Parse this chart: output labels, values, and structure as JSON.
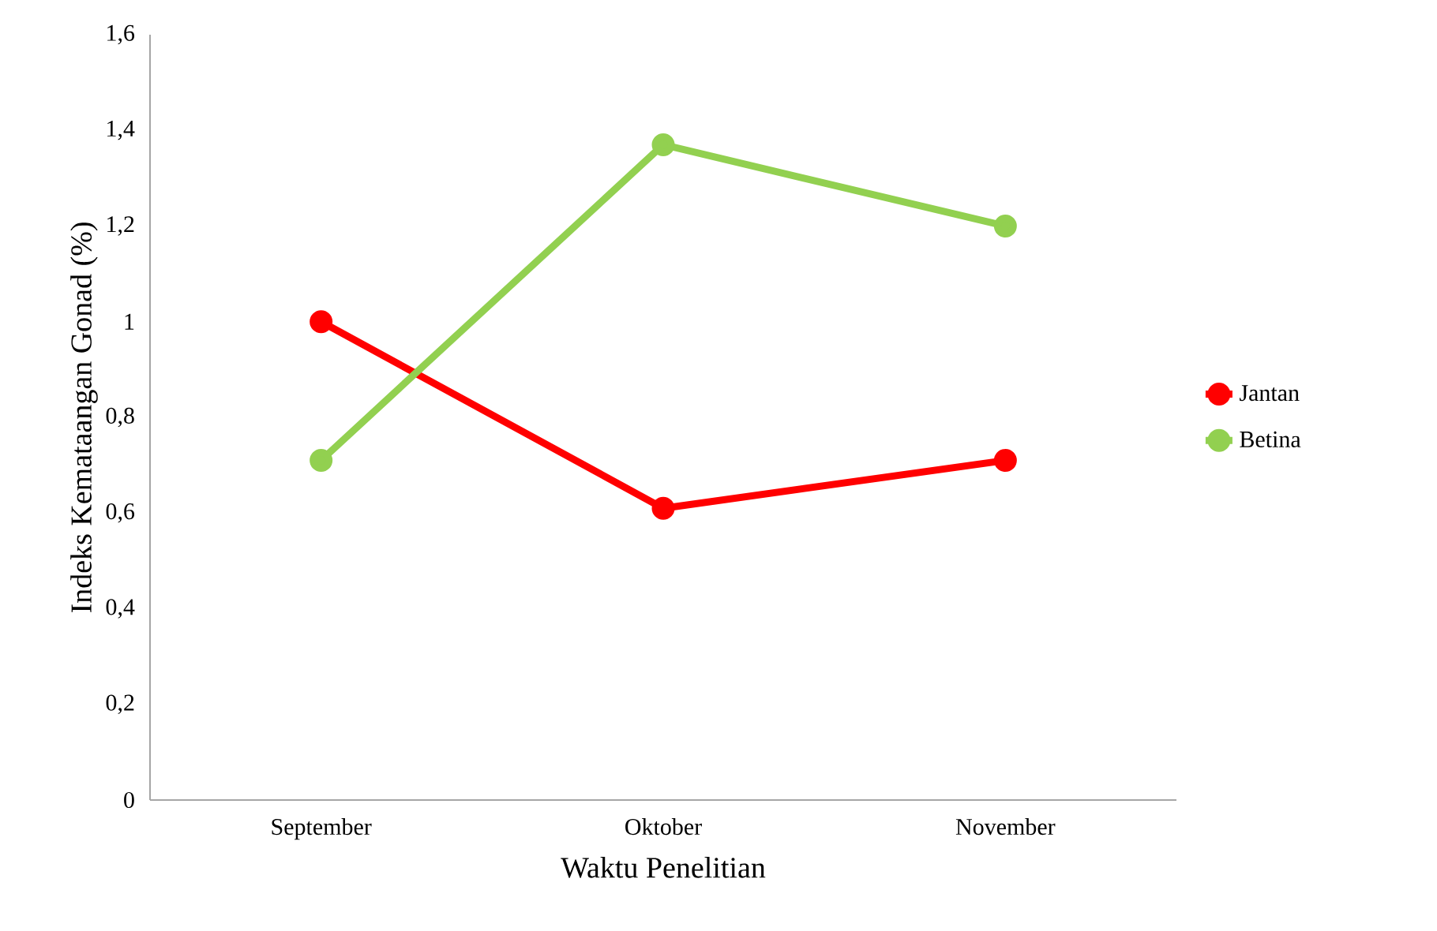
{
  "chart_data": {
    "type": "line",
    "xlabel": "Waktu Penelitian",
    "ylabel": "Indeks Kemataangan Gonad (%)",
    "categories": [
      "September",
      "Oktober",
      "November"
    ],
    "series": [
      {
        "name": "Jantan",
        "color": "#ff0000",
        "values": [
          1.0,
          0.61,
          0.71
        ]
      },
      {
        "name": "Betina",
        "color": "#92d050",
        "values": [
          0.71,
          1.37,
          1.2
        ]
      }
    ],
    "ylim": [
      0,
      1.6
    ],
    "yticks": [
      0,
      {
        "value": 0.2,
        "label": "0,2"
      },
      {
        "value": 0.4,
        "label": "0,4"
      },
      {
        "value": 0.6,
        "label": "0,6"
      },
      {
        "value": 0.8,
        "label": "0,8"
      },
      1,
      {
        "value": 1.2,
        "label": "1,2"
      },
      {
        "value": 1.4,
        "label": "1,4"
      },
      {
        "value": 1.6,
        "label": "1,6"
      }
    ],
    "grid": false,
    "legend": "right",
    "marker": "circle",
    "line_style": "solid"
  }
}
